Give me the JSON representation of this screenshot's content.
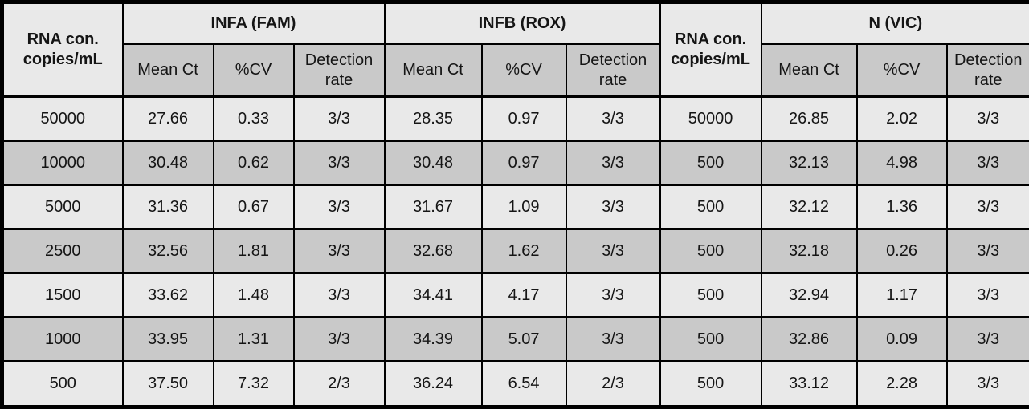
{
  "colors": {
    "row_light": "#e9e9e9",
    "row_dark": "#c9c9c9",
    "border": "#000000",
    "text": "#151515"
  },
  "chart_data": {
    "type": "table",
    "column_groups": [
      {
        "label": "RNA con. copies/mL",
        "span": 1,
        "rowspan": 2
      },
      {
        "label": "INFA (FAM)",
        "span": 3
      },
      {
        "label": "INFB (ROX)",
        "span": 3
      },
      {
        "label": "RNA con. copies/mL",
        "span": 1,
        "rowspan": 2
      },
      {
        "label": "N (VIC)",
        "span": 3
      }
    ],
    "subheaders": [
      "Mean Ct",
      "%CV",
      "Detection rate"
    ],
    "columns": [
      "RNA con. copies/mL",
      "INFA (FAM) Mean Ct",
      "INFA (FAM) %CV",
      "INFA (FAM) Detection rate",
      "INFB (ROX) Mean Ct",
      "INFB (ROX) %CV",
      "INFB (ROX) Detection rate",
      "RNA con. copies/mL",
      "N (VIC) Mean Ct",
      "N (VIC) %CV",
      "N (VIC) Detection rate"
    ],
    "rows": [
      [
        "50000",
        "27.66",
        "0.33",
        "3/3",
        "28.35",
        "0.97",
        "3/3",
        "50000",
        "26.85",
        "2.02",
        "3/3"
      ],
      [
        "10000",
        "30.48",
        "0.62",
        "3/3",
        "30.48",
        "0.97",
        "3/3",
        "500",
        "32.13",
        "4.98",
        "3/3"
      ],
      [
        "5000",
        "31.36",
        "0.67",
        "3/3",
        "31.67",
        "1.09",
        "3/3",
        "500",
        "32.12",
        "1.36",
        "3/3"
      ],
      [
        "2500",
        "32.56",
        "1.81",
        "3/3",
        "32.68",
        "1.62",
        "3/3",
        "500",
        "32.18",
        "0.26",
        "3/3"
      ],
      [
        "1500",
        "33.62",
        "1.48",
        "3/3",
        "34.41",
        "4.17",
        "3/3",
        "500",
        "32.94",
        "1.17",
        "3/3"
      ],
      [
        "1000",
        "33.95",
        "1.31",
        "3/3",
        "34.39",
        "5.07",
        "3/3",
        "500",
        "32.86",
        "0.09",
        "3/3"
      ],
      [
        "500",
        "37.50",
        "7.32",
        "2/3",
        "36.24",
        "6.54",
        "2/3",
        "500",
        "33.12",
        "2.28",
        "3/3"
      ]
    ]
  }
}
